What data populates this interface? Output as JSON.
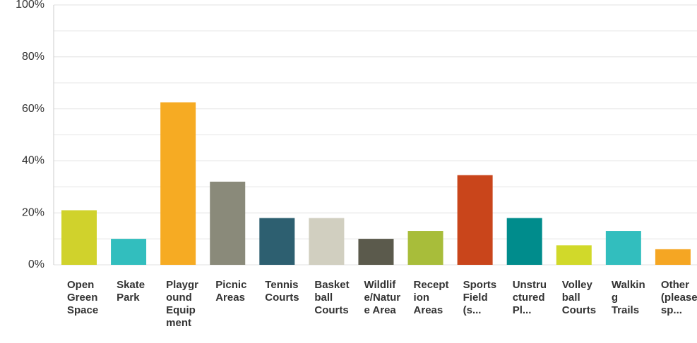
{
  "chart_data": {
    "type": "bar",
    "categories": [
      "Open Green Space",
      "Skate Park",
      "Playground Equipment",
      "Picnic Areas",
      "Tennis Courts",
      "Basketball Courts",
      "Wildlife/Nature Area",
      "Reception Areas",
      "Sports Field (s...",
      "Unstructured Pl...",
      "Volleyball Courts",
      "Walking Trails",
      "Other (please sp..."
    ],
    "values": [
      21,
      10,
      62.5,
      32,
      18,
      18,
      10,
      13,
      34.5,
      18,
      7.5,
      13,
      6
    ],
    "colors": [
      "#d0d22c",
      "#32bebe",
      "#f6ab23",
      "#8a8a7a",
      "#2d5f70",
      "#d1cfc0",
      "#5b5a4c",
      "#a8bd3a",
      "#c9451b",
      "#008c8c",
      "#d1d92a",
      "#32bebe",
      "#f5a623"
    ],
    "ylim": [
      0,
      100
    ],
    "yticks": [
      {
        "value": 0,
        "label": "0%"
      },
      {
        "value": 20,
        "label": "20%"
      },
      {
        "value": 40,
        "label": "40%"
      },
      {
        "value": 60,
        "label": "60%"
      },
      {
        "value": 80,
        "label": "80%"
      },
      {
        "value": 100,
        "label": "100%"
      }
    ],
    "minor_yticks": [
      10,
      30,
      50,
      70,
      90
    ],
    "grid": true
  }
}
